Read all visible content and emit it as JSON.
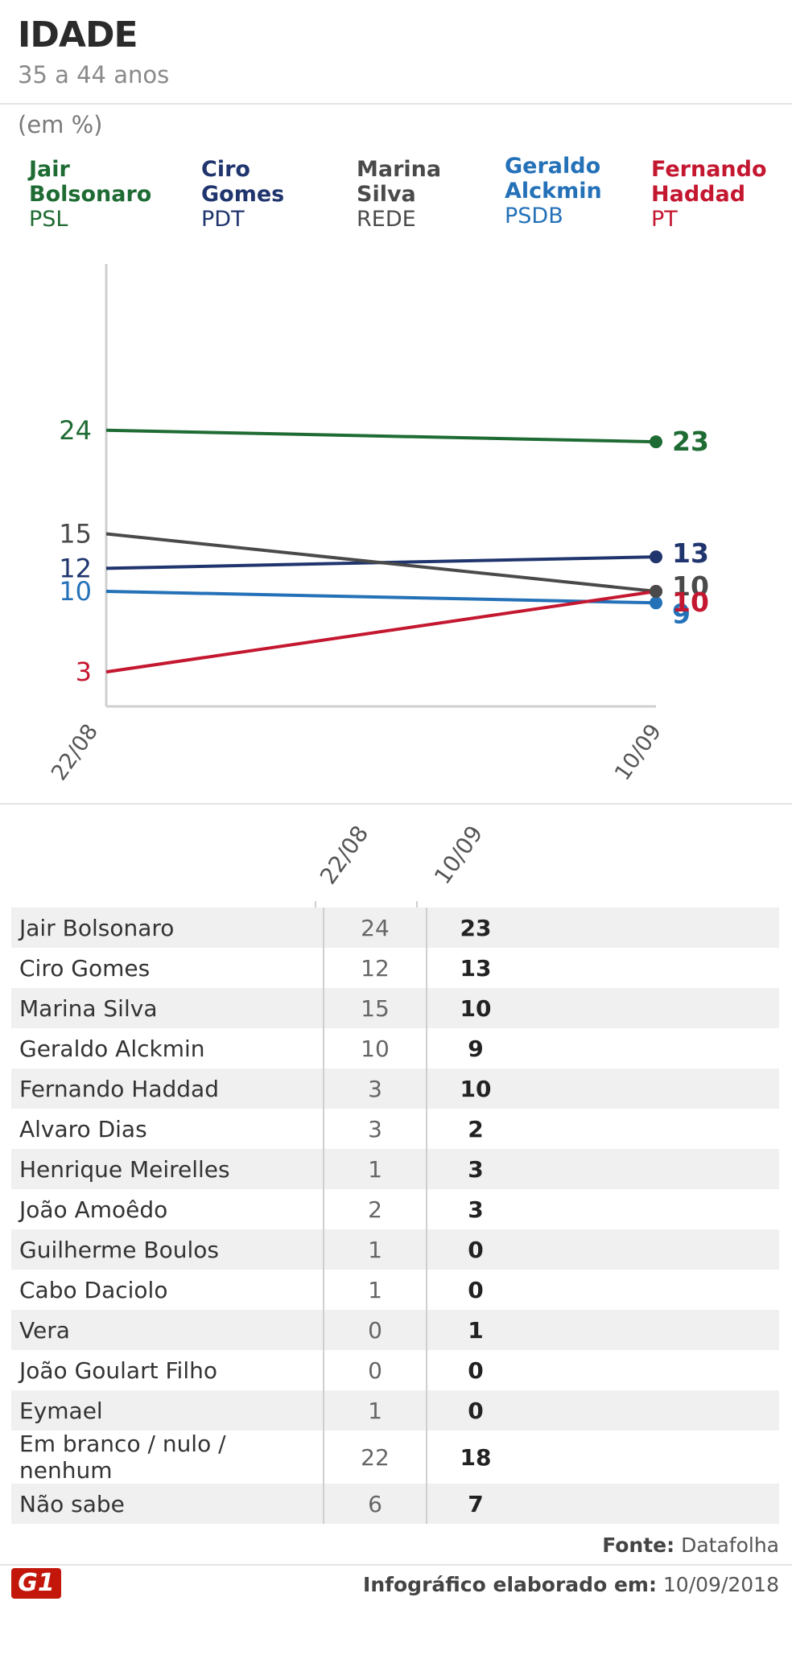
{
  "header": {
    "title": "IDADE",
    "subtitle": "35 a 44 anos",
    "unit": "(em %)"
  },
  "legend": [
    {
      "first": "Jair",
      "last": "Bolsonaro",
      "party": "PSL",
      "color": "#1e6b33"
    },
    {
      "first": "Ciro",
      "last": "Gomes",
      "party": "PDT",
      "color": "#20356e"
    },
    {
      "first": "Marina",
      "last": "Silva",
      "party": "REDE",
      "color": "#4a4a4a"
    },
    {
      "first": "Geraldo",
      "last": "Alckmin",
      "party": "PSDB",
      "color": "#2471b8"
    },
    {
      "first": "Fernando",
      "last": "Haddad",
      "party": "PT",
      "color": "#c41730"
    }
  ],
  "chart_data": {
    "type": "line",
    "x": [
      "22/08",
      "10/09"
    ],
    "series": [
      {
        "name": "Jair Bolsonaro",
        "values": [
          24,
          23
        ],
        "color": "#1e6b33"
      },
      {
        "name": "Ciro Gomes",
        "values": [
          12,
          13
        ],
        "color": "#20356e"
      },
      {
        "name": "Marina Silva",
        "values": [
          15,
          10
        ],
        "color": "#4a4a4a"
      },
      {
        "name": "Geraldo Alckmin",
        "values": [
          10,
          9
        ],
        "color": "#2471b8"
      },
      {
        "name": "Fernando Haddad",
        "values": [
          3,
          10
        ],
        "color": "#c41730"
      }
    ],
    "ylim": [
      0,
      36
    ],
    "grid": false
  },
  "table": {
    "col1": "22/08",
    "col2": "10/09",
    "rows": [
      {
        "name": "Jair Bolsonaro",
        "v1": "24",
        "v2": "23"
      },
      {
        "name": "Ciro Gomes",
        "v1": "12",
        "v2": "13"
      },
      {
        "name": "Marina Silva",
        "v1": "15",
        "v2": "10"
      },
      {
        "name": "Geraldo Alckmin",
        "v1": "10",
        "v2": "9"
      },
      {
        "name": "Fernando Haddad",
        "v1": "3",
        "v2": "10"
      },
      {
        "name": "Alvaro Dias",
        "v1": "3",
        "v2": "2"
      },
      {
        "name": "Henrique Meirelles",
        "v1": "1",
        "v2": "3"
      },
      {
        "name": "João Amoêdo",
        "v1": "2",
        "v2": "3"
      },
      {
        "name": "Guilherme Boulos",
        "v1": "1",
        "v2": "0"
      },
      {
        "name": "Cabo Daciolo",
        "v1": "1",
        "v2": "0"
      },
      {
        "name": "Vera",
        "v1": "0",
        "v2": "1"
      },
      {
        "name": "João Goulart Filho",
        "v1": "0",
        "v2": "0"
      },
      {
        "name": "Eymael",
        "v1": "1",
        "v2": "0"
      },
      {
        "name": "Em branco / nulo / nenhum",
        "v1": "22",
        "v2": "18"
      },
      {
        "name": "Não sabe",
        "v1": "6",
        "v2": "7"
      }
    ]
  },
  "footer": {
    "source_label": "Fonte:",
    "source_value": "Datafolha",
    "note_label": "Infográfico elaborado em:",
    "note_date": "10/09/2018",
    "logo_text": "G1"
  }
}
